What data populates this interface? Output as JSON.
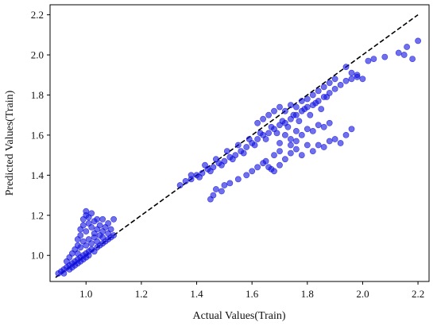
{
  "chart_data": {
    "type": "scatter",
    "title": "",
    "xlabel": "Actual Values(Train)",
    "ylabel": "Predicted Values(Train)",
    "xlim": [
      0.87,
      2.24
    ],
    "ylim": [
      0.87,
      2.25
    ],
    "xticks": [
      "1.0",
      "1.2",
      "1.4",
      "1.6",
      "1.8",
      "2.0",
      "2.2"
    ],
    "yticks": [
      "1.0",
      "1.2",
      "1.4",
      "1.6",
      "1.8",
      "2.0",
      "2.2"
    ],
    "grid": false,
    "legend": "none",
    "point_color": "#1010e0",
    "reference_line": {
      "style": "dashed",
      "color": "#000000",
      "from": [
        0.89,
        0.89
      ],
      "to": [
        2.2,
        2.2
      ]
    },
    "series": [
      {
        "points": [
          [
            0.9,
            0.91
          ],
          [
            0.91,
            0.92
          ],
          [
            0.92,
            0.93
          ],
          [
            0.92,
            0.91
          ],
          [
            0.93,
            0.94
          ],
          [
            0.94,
            0.93
          ],
          [
            0.94,
            0.95
          ],
          [
            0.95,
            0.96
          ],
          [
            0.95,
            0.94
          ],
          [
            0.96,
            0.97
          ],
          [
            0.96,
            0.95
          ],
          [
            0.97,
            0.98
          ],
          [
            0.97,
            0.96
          ],
          [
            0.98,
            0.99
          ],
          [
            0.98,
            0.97
          ],
          [
            0.99,
            1.0
          ],
          [
            0.99,
            0.98
          ],
          [
            1.0,
            1.01
          ],
          [
            1.0,
            0.99
          ],
          [
            1.01,
            1.02
          ],
          [
            1.01,
            1.0
          ],
          [
            1.02,
            1.03
          ],
          [
            1.03,
            1.02
          ],
          [
            1.04,
            1.04
          ],
          [
            1.05,
            1.05
          ],
          [
            1.06,
            1.06
          ],
          [
            1.07,
            1.07
          ],
          [
            1.08,
            1.08
          ],
          [
            1.09,
            1.09
          ],
          [
            1.1,
            1.1
          ],
          [
            0.93,
            0.97
          ],
          [
            0.94,
            0.99
          ],
          [
            0.95,
            1.01
          ],
          [
            0.96,
            1.03
          ],
          [
            0.97,
            1.05
          ],
          [
            0.97,
            1.08
          ],
          [
            0.98,
            1.1
          ],
          [
            0.98,
            1.13
          ],
          [
            0.99,
            1.15
          ],
          [
            0.99,
            1.18
          ],
          [
            1.0,
            1.2
          ],
          [
            1.0,
            1.22
          ],
          [
            1.0,
            1.12
          ],
          [
            1.01,
            1.16
          ],
          [
            1.01,
            1.19
          ],
          [
            1.02,
            1.21
          ],
          [
            1.02,
            1.14
          ],
          [
            1.03,
            1.17
          ],
          [
            1.03,
            1.11
          ],
          [
            1.04,
            1.13
          ],
          [
            1.04,
            1.18
          ],
          [
            1.05,
            1.15
          ],
          [
            1.05,
            1.1
          ],
          [
            1.06,
            1.12
          ],
          [
            1.06,
            1.18
          ],
          [
            1.07,
            1.14
          ],
          [
            1.08,
            1.16
          ],
          [
            1.09,
            1.13
          ],
          [
            1.1,
            1.18
          ],
          [
            1.01,
            1.08
          ],
          [
            1.02,
            1.06
          ],
          [
            1.03,
            1.09
          ],
          [
            1.0,
            1.05
          ],
          [
            0.99,
            1.07
          ],
          [
            0.98,
            1.04
          ],
          [
            0.97,
            1.01
          ],
          [
            1.04,
            1.07
          ],
          [
            1.06,
            1.09
          ],
          [
            1.08,
            1.11
          ],
          [
            1.34,
            1.35
          ],
          [
            1.36,
            1.37
          ],
          [
            1.38,
            1.38
          ],
          [
            1.4,
            1.4
          ],
          [
            1.42,
            1.41
          ],
          [
            1.44,
            1.43
          ],
          [
            1.46,
            1.44
          ],
          [
            1.48,
            1.46
          ],
          [
            1.5,
            1.47
          ],
          [
            1.52,
            1.49
          ],
          [
            1.54,
            1.5
          ],
          [
            1.56,
            1.52
          ],
          [
            1.58,
            1.54
          ],
          [
            1.6,
            1.56
          ],
          [
            1.62,
            1.58
          ],
          [
            1.64,
            1.6
          ],
          [
            1.66,
            1.61
          ],
          [
            1.68,
            1.63
          ],
          [
            1.7,
            1.65
          ],
          [
            1.72,
            1.66
          ],
          [
            1.74,
            1.68
          ],
          [
            1.76,
            1.7
          ],
          [
            1.78,
            1.72
          ],
          [
            1.8,
            1.74
          ],
          [
            1.82,
            1.75
          ],
          [
            1.84,
            1.77
          ],
          [
            1.86,
            1.79
          ],
          [
            1.88,
            1.81
          ],
          [
            1.9,
            1.83
          ],
          [
            1.92,
            1.85
          ],
          [
            1.94,
            1.87
          ],
          [
            1.96,
            1.88
          ],
          [
            1.98,
            1.9
          ],
          [
            1.38,
            1.4
          ],
          [
            1.41,
            1.39
          ],
          [
            1.43,
            1.45
          ],
          [
            1.45,
            1.42
          ],
          [
            1.47,
            1.48
          ],
          [
            1.49,
            1.45
          ],
          [
            1.51,
            1.52
          ],
          [
            1.53,
            1.48
          ],
          [
            1.55,
            1.55
          ],
          [
            1.57,
            1.51
          ],
          [
            1.59,
            1.58
          ],
          [
            1.61,
            1.55
          ],
          [
            1.63,
            1.61
          ],
          [
            1.65,
            1.58
          ],
          [
            1.67,
            1.64
          ],
          [
            1.69,
            1.61
          ],
          [
            1.71,
            1.67
          ],
          [
            1.73,
            1.64
          ],
          [
            1.75,
            1.7
          ],
          [
            1.77,
            1.67
          ],
          [
            1.79,
            1.73
          ],
          [
            1.81,
            1.7
          ],
          [
            1.83,
            1.76
          ],
          [
            1.85,
            1.73
          ],
          [
            1.87,
            1.79
          ],
          [
            1.62,
            1.66
          ],
          [
            1.64,
            1.68
          ],
          [
            1.66,
            1.7
          ],
          [
            1.68,
            1.72
          ],
          [
            1.7,
            1.74
          ],
          [
            1.72,
            1.72
          ],
          [
            1.74,
            1.75
          ],
          [
            1.76,
            1.74
          ],
          [
            1.78,
            1.77
          ],
          [
            1.8,
            1.78
          ],
          [
            1.82,
            1.8
          ],
          [
            1.84,
            1.82
          ],
          [
            1.86,
            1.84
          ],
          [
            1.88,
            1.86
          ],
          [
            1.9,
            1.88
          ],
          [
            1.45,
            1.28
          ],
          [
            1.46,
            1.3
          ],
          [
            1.47,
            1.33
          ],
          [
            1.49,
            1.32
          ],
          [
            1.5,
            1.35
          ],
          [
            1.52,
            1.36
          ],
          [
            1.55,
            1.38
          ],
          [
            1.58,
            1.4
          ],
          [
            1.6,
            1.42
          ],
          [
            1.62,
            1.44
          ],
          [
            1.64,
            1.46
          ],
          [
            1.66,
            1.44
          ],
          [
            1.68,
            1.42
          ],
          [
            1.7,
            1.45
          ],
          [
            1.72,
            1.48
          ],
          [
            1.74,
            1.51
          ],
          [
            1.76,
            1.53
          ],
          [
            1.78,
            1.5
          ],
          [
            1.8,
            1.55
          ],
          [
            1.82,
            1.52
          ],
          [
            1.84,
            1.55
          ],
          [
            1.86,
            1.54
          ],
          [
            1.88,
            1.57
          ],
          [
            1.9,
            1.58
          ],
          [
            1.92,
            1.56
          ],
          [
            1.94,
            1.6
          ],
          [
            1.96,
            1.63
          ],
          [
            1.7,
            1.56
          ],
          [
            1.72,
            1.6
          ],
          [
            1.74,
            1.58
          ],
          [
            1.76,
            1.62
          ],
          [
            1.78,
            1.6
          ],
          [
            1.8,
            1.63
          ],
          [
            1.82,
            1.62
          ],
          [
            1.84,
            1.65
          ],
          [
            1.86,
            1.64
          ],
          [
            1.88,
            1.66
          ],
          [
            1.68,
            1.5
          ],
          [
            1.7,
            1.52
          ],
          [
            1.74,
            1.55
          ],
          [
            1.76,
            1.57
          ],
          [
            1.65,
            1.47
          ],
          [
            1.67,
            1.43
          ],
          [
            1.94,
            1.94
          ],
          [
            1.96,
            1.91
          ],
          [
            1.98,
            1.89
          ],
          [
            2.0,
            1.88
          ],
          [
            2.02,
            1.97
          ],
          [
            2.04,
            1.98
          ],
          [
            2.08,
            1.99
          ],
          [
            2.13,
            2.01
          ],
          [
            2.15,
            2.0
          ],
          [
            2.16,
            2.04
          ],
          [
            2.18,
            1.98
          ],
          [
            2.2,
            2.07
          ]
        ]
      }
    ]
  }
}
